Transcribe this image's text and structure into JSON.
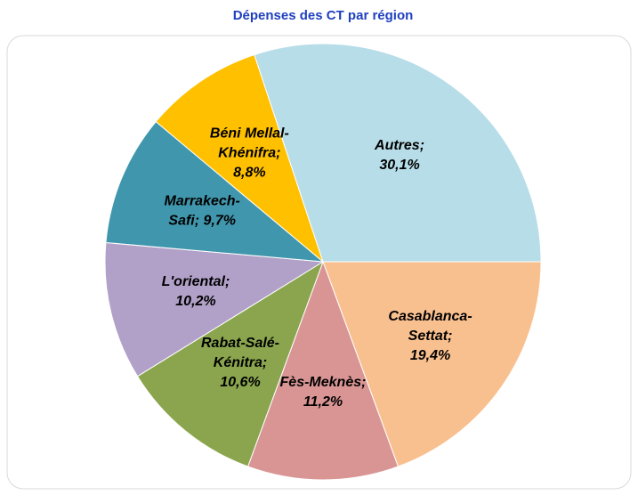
{
  "chart_data": {
    "type": "pie",
    "title": "Dépenses des CT par région",
    "values": [
      19.4,
      11.2,
      10.6,
      10.2,
      9.7,
      8.8,
      30.1
    ],
    "value_labels": [
      "Casablanca-\nSettat;\n19,4%",
      "Fès-Meknès;\n11,2%",
      "Rabat-Salé-\nKénitra;\n10,6%",
      "L'oriental;\n10,2%",
      "Marrakech-\nSafi; 9,7%",
      "Béni Mellal-\nKhénifra;\n8,8%",
      "Autres;\n30,1%"
    ],
    "colors": [
      "#f9c08f",
      "#d99594",
      "#8aa54e",
      "#b1a0c7",
      "#4097ad",
      "#ffc000",
      "#b7dde8"
    ]
  }
}
